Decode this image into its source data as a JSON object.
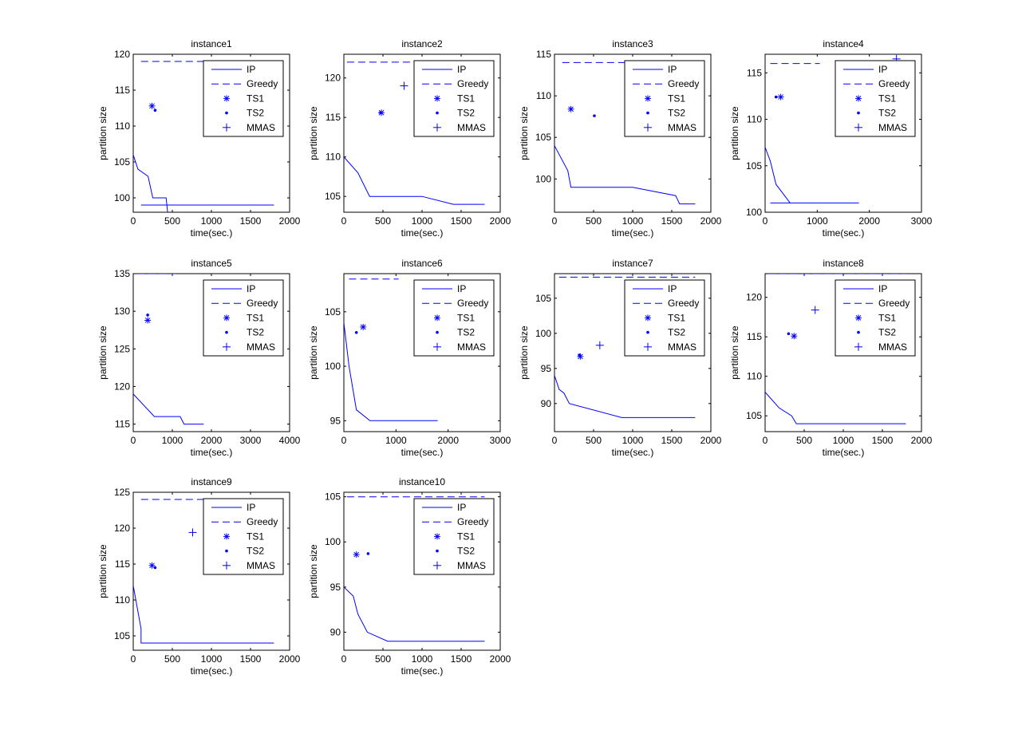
{
  "colors": {
    "series": "#0000ff",
    "axes": "#000000",
    "background": "#ffffff"
  },
  "legend_labels": [
    "IP",
    "Greedy",
    "TS1",
    "TS2",
    "MMAS"
  ],
  "chart_data": [
    {
      "type": "line",
      "title": "instance1",
      "xlabel": "time(sec.)",
      "ylabel": "partition size",
      "xlim": [
        0,
        2000
      ],
      "ylim": [
        98,
        120
      ],
      "xticks": [
        "0",
        "500",
        "1000",
        "1500",
        "2000"
      ],
      "yticks": [
        "100",
        "105",
        "110",
        "115",
        "120"
      ],
      "legend_position": "top-right",
      "series": [
        {
          "name": "IP",
          "style": "solid",
          "points": [
            [
              0,
              106
            ],
            [
              60,
              104
            ],
            [
              190,
              103
            ],
            [
              250,
              100
            ],
            [
              420,
              100
            ],
            [
              440,
              98
            ]
          ]
        },
        {
          "name": "IP",
          "style": "solid",
          "points": [
            [
              100,
              99
            ],
            [
              1800,
              99
            ]
          ]
        },
        {
          "name": "Greedy",
          "style": "dashed",
          "points": [
            [
              100,
              119
            ],
            [
              1800,
              119
            ]
          ]
        },
        {
          "name": "TS1",
          "marker": "star",
          "points": [
            [
              240,
              112.8
            ]
          ]
        },
        {
          "name": "TS2",
          "marker": "dot",
          "points": [
            [
              280,
              112.2
            ]
          ]
        }
      ]
    },
    {
      "type": "line",
      "title": "instance2",
      "xlabel": "time(sec.)",
      "ylabel": "partition size",
      "xlim": [
        0,
        2000
      ],
      "ylim": [
        103,
        123
      ],
      "xticks": [
        "0",
        "500",
        "1000",
        "1500",
        "2000"
      ],
      "yticks": [
        "105",
        "110",
        "115",
        "120"
      ],
      "legend_position": "top-right",
      "series": [
        {
          "name": "IP",
          "style": "solid",
          "points": [
            [
              0,
              110
            ],
            [
              180,
              108
            ],
            [
              330,
              105
            ],
            [
              1000,
              105
            ],
            [
              1400,
              104
            ],
            [
              1800,
              104
            ]
          ]
        },
        {
          "name": "Greedy",
          "style": "dashed",
          "points": [
            [
              40,
              122
            ],
            [
              1800,
              122
            ]
          ]
        },
        {
          "name": "TS1",
          "marker": "star",
          "points": [
            [
              480,
              115.6
            ]
          ]
        },
        {
          "name": "TS2",
          "marker": "dot",
          "points": [
            [
              470,
              115.6
            ]
          ]
        },
        {
          "name": "MMAS",
          "marker": "plus",
          "points": [
            [
              770,
              119
            ]
          ]
        }
      ]
    },
    {
      "type": "line",
      "title": "instance3",
      "xlabel": "time(sec.)",
      "ylabel": "partition size",
      "xlim": [
        0,
        2000
      ],
      "ylim": [
        96,
        115
      ],
      "xticks": [
        "0",
        "500",
        "1000",
        "1500",
        "2000"
      ],
      "yticks": [
        "100",
        "105",
        "110",
        "115"
      ],
      "legend_position": "top-right",
      "series": [
        {
          "name": "IP",
          "style": "solid",
          "points": [
            [
              0,
              104
            ],
            [
              170,
              101
            ],
            [
              210,
              99
            ],
            [
              1000,
              99
            ],
            [
              1550,
              98
            ],
            [
              1600,
              97
            ],
            [
              1800,
              97
            ]
          ]
        },
        {
          "name": "Greedy",
          "style": "dashed",
          "points": [
            [
              100,
              114
            ],
            [
              1800,
              114
            ]
          ]
        },
        {
          "name": "TS1",
          "marker": "star",
          "points": [
            [
              210,
              108.4
            ]
          ]
        },
        {
          "name": "TS2",
          "marker": "dot",
          "points": [
            [
              510,
              107.6
            ]
          ]
        }
      ]
    },
    {
      "type": "line",
      "title": "instance4",
      "xlabel": "time(sec.)",
      "ylabel": "partition size",
      "xlim": [
        0,
        3000
      ],
      "ylim": [
        100,
        117
      ],
      "xticks": [
        "0",
        "1000",
        "2000",
        "3000"
      ],
      "yticks": [
        "100",
        "105",
        "110",
        "115"
      ],
      "legend_position": "top-right",
      "series": [
        {
          "name": "IP",
          "style": "solid",
          "points": [
            [
              0,
              107
            ],
            [
              100,
              105.5
            ],
            [
              210,
              103
            ],
            [
              480,
              101
            ]
          ]
        },
        {
          "name": "IP",
          "style": "solid",
          "points": [
            [
              100,
              101
            ],
            [
              1800,
              101
            ]
          ]
        },
        {
          "name": "Greedy",
          "style": "dashed",
          "points": [
            [
              100,
              116
            ],
            [
              1050,
              116
            ]
          ]
        },
        {
          "name": "TS1",
          "marker": "star",
          "points": [
            [
              300,
              112.4
            ]
          ]
        },
        {
          "name": "TS2",
          "marker": "dot",
          "points": [
            [
              210,
              112.4
            ]
          ]
        },
        {
          "name": "MMAS",
          "marker": "plus",
          "points": [
            [
              2520,
              116.5
            ]
          ]
        }
      ]
    },
    {
      "type": "line",
      "title": "instance5",
      "xlabel": "time(sec.)",
      "ylabel": "partition size",
      "xlim": [
        0,
        4000
      ],
      "ylim": [
        114,
        135
      ],
      "xticks": [
        "0",
        "1000",
        "2000",
        "3000",
        "4000"
      ],
      "yticks": [
        "115",
        "120",
        "125",
        "130",
        "135"
      ],
      "legend_position": "top-right",
      "series": [
        {
          "name": "IP",
          "style": "solid",
          "points": [
            [
              0,
              119
            ],
            [
              540,
              116
            ],
            [
              1200,
              116
            ],
            [
              1300,
              115
            ],
            [
              1800,
              115
            ]
          ]
        },
        {
          "name": "Greedy",
          "style": "dashed",
          "points": [
            [
              100,
              135
            ],
            [
              1100,
              135
            ]
          ]
        },
        {
          "name": "TS1",
          "marker": "star",
          "points": [
            [
              370,
              128.8
            ]
          ]
        },
        {
          "name": "TS2",
          "marker": "dot",
          "points": [
            [
              370,
              129.5
            ]
          ]
        }
      ]
    },
    {
      "type": "line",
      "title": "instance6",
      "xlabel": "time(sec.)",
      "ylabel": "partition size",
      "xlim": [
        0,
        3000
      ],
      "ylim": [
        94,
        108.5
      ],
      "xticks": [
        "0",
        "1000",
        "2000",
        "3000"
      ],
      "yticks": [
        "95",
        "100",
        "105"
      ],
      "legend_position": "top-right",
      "series": [
        {
          "name": "IP",
          "style": "solid",
          "points": [
            [
              0,
              104
            ],
            [
              100,
              100
            ],
            [
              240,
              96
            ],
            [
              500,
              95
            ],
            [
              1800,
              95
            ]
          ]
        },
        {
          "name": "Greedy",
          "style": "dashed",
          "points": [
            [
              100,
              108
            ],
            [
              1050,
              108
            ]
          ]
        },
        {
          "name": "TS1",
          "marker": "star",
          "points": [
            [
              370,
              103.6
            ]
          ]
        },
        {
          "name": "TS2",
          "marker": "dot",
          "points": [
            [
              240,
              103.1
            ]
          ]
        }
      ]
    },
    {
      "type": "line",
      "title": "instance7",
      "xlabel": "time(sec.)",
      "ylabel": "partition size",
      "xlim": [
        0,
        2000
      ],
      "ylim": [
        86,
        108.5
      ],
      "xticks": [
        "0",
        "500",
        "1000",
        "1500",
        "2000"
      ],
      "yticks": [
        "90",
        "95",
        "100",
        "105"
      ],
      "legend_position": "top-right",
      "series": [
        {
          "name": "IP",
          "style": "solid",
          "points": [
            [
              0,
              94
            ],
            [
              60,
              92
            ],
            [
              120,
              91.5
            ],
            [
              190,
              90
            ],
            [
              860,
              88
            ],
            [
              1800,
              88
            ]
          ]
        },
        {
          "name": "Greedy",
          "style": "dashed",
          "points": [
            [
              60,
              108
            ],
            [
              1800,
              108
            ]
          ]
        },
        {
          "name": "TS1",
          "marker": "star",
          "points": [
            [
              330,
              96.7
            ]
          ]
        },
        {
          "name": "TS2",
          "marker": "dot",
          "points": [
            [
              320,
              96.9
            ]
          ]
        },
        {
          "name": "MMAS",
          "marker": "plus",
          "points": [
            [
              580,
              98.3
            ]
          ]
        }
      ]
    },
    {
      "type": "line",
      "title": "instance8",
      "xlabel": "time(sec.)",
      "ylabel": "partition size",
      "xlim": [
        0,
        2000
      ],
      "ylim": [
        103,
        123
      ],
      "xticks": [
        "0",
        "500",
        "1000",
        "1500",
        "2000"
      ],
      "yticks": [
        "105",
        "110",
        "115",
        "120"
      ],
      "legend_position": "top-right",
      "series": [
        {
          "name": "IP",
          "style": "solid",
          "points": [
            [
              0,
              108
            ],
            [
              180,
              106
            ],
            [
              340,
              105
            ],
            [
              400,
              104
            ],
            [
              1800,
              104
            ]
          ]
        },
        {
          "name": "Greedy",
          "style": "dashed",
          "points": [
            [
              40,
              123
            ],
            [
              1800,
              123
            ]
          ]
        },
        {
          "name": "TS1",
          "marker": "star",
          "points": [
            [
              370,
              115.1
            ]
          ]
        },
        {
          "name": "TS2",
          "marker": "dot",
          "points": [
            [
              300,
              115.4
            ]
          ]
        },
        {
          "name": "MMAS",
          "marker": "plus",
          "points": [
            [
              640,
              118.4
            ]
          ]
        }
      ]
    },
    {
      "type": "line",
      "title": "instance9",
      "xlabel": "time(sec.)",
      "ylabel": "partition size",
      "xlim": [
        0,
        2000
      ],
      "ylim": [
        103,
        125
      ],
      "xticks": [
        "0",
        "500",
        "1000",
        "1500",
        "2000"
      ],
      "yticks": [
        "105",
        "110",
        "115",
        "120",
        "125"
      ],
      "legend_position": "top-right",
      "series": [
        {
          "name": "IP",
          "style": "solid",
          "points": [
            [
              0,
              112
            ],
            [
              100,
              106
            ],
            [
              100,
              104
            ],
            [
              1800,
              104
            ]
          ]
        },
        {
          "name": "Greedy",
          "style": "dashed",
          "points": [
            [
              100,
              124
            ],
            [
              1800,
              124
            ]
          ]
        },
        {
          "name": "TS1",
          "marker": "star",
          "points": [
            [
              240,
              114.8
            ]
          ]
        },
        {
          "name": "TS2",
          "marker": "dot",
          "points": [
            [
              280,
              114.5
            ]
          ]
        },
        {
          "name": "MMAS",
          "marker": "plus",
          "points": [
            [
              760,
              119.4
            ]
          ]
        }
      ]
    },
    {
      "type": "line",
      "title": "instance10",
      "xlabel": "time(sec.)",
      "ylabel": "partition size",
      "xlim": [
        0,
        2000
      ],
      "ylim": [
        88,
        105.5
      ],
      "xticks": [
        "0",
        "500",
        "1000",
        "1500",
        "2000"
      ],
      "yticks": [
        "90",
        "95",
        "100",
        "105"
      ],
      "legend_position": "top-right",
      "series": [
        {
          "name": "IP",
          "style": "solid",
          "points": [
            [
              0,
              95
            ],
            [
              120,
              94
            ],
            [
              180,
              92
            ],
            [
              300,
              90
            ],
            [
              560,
              89
            ],
            [
              1800,
              89
            ]
          ]
        },
        {
          "name": "Greedy",
          "style": "dashed",
          "points": [
            [
              40,
              105
            ],
            [
              1800,
              105
            ]
          ]
        },
        {
          "name": "TS1",
          "marker": "star",
          "points": [
            [
              160,
              98.6
            ]
          ]
        },
        {
          "name": "TS2",
          "marker": "dot",
          "points": [
            [
              310,
              98.7
            ]
          ]
        }
      ]
    }
  ]
}
